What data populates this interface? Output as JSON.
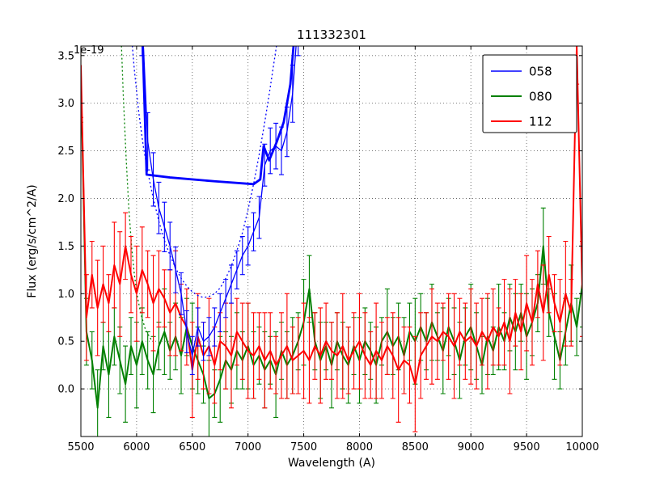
{
  "chart": {
    "title": "111332301",
    "xlabel": "Wavelength (A)",
    "ylabel": "Flux (erg/s/cm^2/A)",
    "offset_factor": "1e-19"
  },
  "legend": {
    "position": "upper right",
    "entries": [
      {
        "label": "058",
        "color": "#0000ff",
        "sample_width": 1.5
      },
      {
        "label": "080",
        "color": "#008000",
        "sample_width": 2
      },
      {
        "label": "112",
        "color": "#ff0000",
        "sample_width": 2
      }
    ]
  },
  "chart_data": {
    "type": "line",
    "title": "111332301",
    "xlabel": "Wavelength (A)",
    "ylabel": "Flux (erg/s/cm^2/A)",
    "y_offset_factor": "1e-19",
    "grid": true,
    "legend_position": "upper right",
    "xlim": [
      5500,
      10000
    ],
    "ylim": [
      -0.5,
      3.6
    ],
    "xticks": [
      5500,
      6000,
      6500,
      7000,
      7500,
      8000,
      8500,
      9000,
      9500,
      10000
    ],
    "xtick_labels": [
      "5500",
      "6000",
      "6500",
      "7000",
      "7500",
      "8000",
      "8500",
      "9000",
      "9500",
      "10000"
    ],
    "yticks": [
      0.0,
      0.5,
      1.0,
      1.5,
      2.0,
      2.5,
      3.0,
      3.5
    ],
    "ytick_labels": [
      "0.0",
      "0.5",
      "1.0",
      "1.5",
      "2.0",
      "2.5",
      "3.0",
      "3.5"
    ],
    "x_grid": [
      5500,
      5550,
      5600,
      5650,
      5700,
      5750,
      5800,
      5850,
      5900,
      5950,
      6000,
      6050,
      6100,
      6150,
      6200,
      6250,
      6300,
      6350,
      6400,
      6450,
      6500,
      6550,
      6600,
      6650,
      6700,
      6750,
      6800,
      6850,
      6900,
      6950,
      7000,
      7050,
      7100,
      7150,
      7200,
      7250,
      7300,
      7350,
      7400,
      7450,
      7500,
      7550,
      7600,
      7650,
      7700,
      7750,
      7800,
      7850,
      7900,
      7950,
      8000,
      8050,
      8100,
      8150,
      8200,
      8250,
      8300,
      8350,
      8400,
      8450,
      8500,
      8550,
      8600,
      8650,
      8700,
      8750,
      8800,
      8850,
      8900,
      8950,
      9000,
      9050,
      9100,
      9150,
      9200,
      9250,
      9300,
      9350,
      9400,
      9450,
      9500,
      9550,
      9600,
      9650,
      9700,
      9750,
      9800,
      9850,
      9900,
      9950,
      10000
    ],
    "series": [
      {
        "name": "080-model-dotted",
        "color": "#008000",
        "dash": "dotted",
        "width": 1.3,
        "x": [
          5855,
          5880,
          5905,
          5930,
          5955,
          5980,
          6010,
          6040,
          6080,
          6130
        ],
        "y": [
          3.9,
          3.1,
          2.45,
          1.9,
          1.5,
          1.2,
          0.95,
          0.78,
          0.62,
          0.52
        ]
      },
      {
        "name": "080",
        "color": "#008000",
        "dash": "solid",
        "width": 2,
        "x_ref": "x_grid",
        "y": [
          3.3,
          0.6,
          0.3,
          -0.2,
          0.45,
          0.15,
          0.55,
          0.3,
          0.05,
          0.45,
          0.25,
          0.5,
          0.3,
          0.15,
          0.45,
          0.6,
          0.4,
          0.55,
          0.35,
          0.65,
          0.45,
          0.3,
          0.15,
          -0.1,
          -0.05,
          0.1,
          0.3,
          0.2,
          0.4,
          0.3,
          0.45,
          0.25,
          0.35,
          0.2,
          0.3,
          0.15,
          0.4,
          0.25,
          0.35,
          0.5,
          0.7,
          1.05,
          0.5,
          0.3,
          0.45,
          0.25,
          0.5,
          0.35,
          0.25,
          0.45,
          0.3,
          0.5,
          0.4,
          0.25,
          0.5,
          0.6,
          0.45,
          0.55,
          0.35,
          0.6,
          0.5,
          0.65,
          0.5,
          0.7,
          0.55,
          0.4,
          0.65,
          0.5,
          0.3,
          0.55,
          0.65,
          0.45,
          0.25,
          0.55,
          0.4,
          0.65,
          0.5,
          0.75,
          0.6,
          0.8,
          0.55,
          0.7,
          0.9,
          1.5,
          0.8,
          0.55,
          0.3,
          0.6,
          0.9,
          0.65,
          1.1
        ],
        "err": [
          0.5,
          0.35,
          0.3,
          0.4,
          0.25,
          0.45,
          0.3,
          0.35,
          0.4,
          0.3,
          0.45,
          0.35,
          0.3,
          0.4,
          0.25,
          0.45,
          0.3,
          0.35,
          0.4,
          0.3,
          0.45,
          0.35,
          0.3,
          0.4,
          0.25,
          0.45,
          0.3,
          0.35,
          0.4,
          0.3,
          0.45,
          0.35,
          0.3,
          0.4,
          0.25,
          0.45,
          0.3,
          0.35,
          0.4,
          0.3,
          0.45,
          0.35,
          0.3,
          0.4,
          0.25,
          0.45,
          0.3,
          0.35,
          0.4,
          0.3,
          0.45,
          0.35,
          0.3,
          0.4,
          0.25,
          0.45,
          0.3,
          0.35,
          0.4,
          0.3,
          0.45,
          0.35,
          0.3,
          0.4,
          0.25,
          0.45,
          0.3,
          0.35,
          0.4,
          0.3,
          0.45,
          0.35,
          0.3,
          0.4,
          0.25,
          0.45,
          0.3,
          0.35,
          0.4,
          0.3,
          0.45,
          0.35,
          0.3,
          0.4,
          0.25,
          0.45,
          0.3,
          0.35,
          0.4,
          0.3,
          0.45
        ]
      },
      {
        "name": "112",
        "color": "#ff0000",
        "dash": "solid",
        "width": 2,
        "x_ref": "x_grid",
        "y": [
          3.4,
          0.75,
          1.2,
          0.85,
          1.1,
          0.9,
          1.3,
          1.1,
          1.5,
          1.2,
          1.0,
          1.25,
          1.1,
          0.9,
          1.05,
          0.95,
          0.8,
          0.9,
          0.75,
          0.65,
          0.2,
          0.55,
          0.35,
          0.45,
          0.25,
          0.5,
          0.45,
          0.35,
          0.6,
          0.5,
          0.4,
          0.35,
          0.45,
          0.3,
          0.4,
          0.25,
          0.35,
          0.45,
          0.3,
          0.35,
          0.4,
          0.3,
          0.45,
          0.35,
          0.5,
          0.4,
          0.35,
          0.45,
          0.3,
          0.4,
          0.5,
          0.35,
          0.25,
          0.4,
          0.3,
          0.45,
          0.35,
          0.2,
          0.3,
          0.25,
          0.05,
          0.35,
          0.45,
          0.55,
          0.5,
          0.6,
          0.55,
          0.45,
          0.6,
          0.5,
          0.55,
          0.45,
          0.6,
          0.5,
          0.65,
          0.55,
          0.7,
          0.5,
          0.8,
          0.6,
          0.9,
          0.7,
          1.1,
          0.8,
          1.2,
          0.9,
          0.7,
          1.0,
          0.8,
          3.6,
          1.05
        ],
        "err": [
          0.55,
          0.45,
          0.35,
          0.5,
          0.4,
          0.3,
          0.45,
          0.55,
          0.35,
          0.4,
          0.5,
          0.45,
          0.35,
          0.5,
          0.4,
          0.3,
          0.45,
          0.55,
          0.35,
          0.4,
          0.5,
          0.45,
          0.35,
          0.5,
          0.4,
          0.3,
          0.45,
          0.55,
          0.35,
          0.4,
          0.5,
          0.45,
          0.35,
          0.5,
          0.4,
          0.3,
          0.45,
          0.55,
          0.35,
          0.4,
          0.5,
          0.45,
          0.35,
          0.5,
          0.4,
          0.3,
          0.45,
          0.55,
          0.35,
          0.4,
          0.5,
          0.45,
          0.35,
          0.5,
          0.4,
          0.3,
          0.45,
          0.55,
          0.35,
          0.4,
          0.5,
          0.45,
          0.35,
          0.5,
          0.4,
          0.3,
          0.45,
          0.55,
          0.35,
          0.4,
          0.5,
          0.45,
          0.35,
          0.5,
          0.4,
          0.3,
          0.45,
          0.55,
          0.35,
          0.4,
          0.5,
          0.45,
          0.35,
          0.5,
          0.4,
          0.3,
          0.45,
          0.55,
          0.35,
          0.4,
          0.5
        ]
      },
      {
        "name": "058-model-dotted",
        "color": "#0000ff",
        "dash": "dotted",
        "width": 1.3,
        "x": [
          5940,
          5980,
          6020,
          6060,
          6100,
          6150,
          6200,
          6250,
          6300,
          6350,
          6400,
          6450,
          6500,
          6550,
          6600,
          6650,
          6700,
          6750,
          6800,
          6850,
          6900,
          6950,
          7000,
          7050,
          7100,
          7150,
          7200,
          7250,
          7290
        ],
        "y": [
          3.9,
          3.35,
          2.9,
          2.55,
          2.28,
          2.0,
          1.76,
          1.56,
          1.4,
          1.27,
          1.16,
          1.08,
          1.02,
          0.98,
          0.96,
          0.97,
          1.0,
          1.06,
          1.16,
          1.29,
          1.45,
          1.64,
          1.88,
          2.15,
          2.46,
          2.8,
          3.17,
          3.56,
          3.9
        ]
      },
      {
        "name": "058",
        "color": "#0000ff",
        "dash": "solid",
        "width": 1.3,
        "x": [
          6050,
          6100,
          6150,
          6200,
          6250,
          6300,
          6350,
          6400,
          6450,
          6500,
          6550,
          6600,
          6650,
          6700,
          6750,
          6800,
          6850,
          6900,
          6950,
          7000,
          7050,
          7100,
          7150,
          7200,
          7250,
          7300,
          7350,
          7400,
          7450
        ],
        "y": [
          3.9,
          2.6,
          2.2,
          1.9,
          1.7,
          1.5,
          1.25,
          1.0,
          0.6,
          0.35,
          0.65,
          0.5,
          0.55,
          0.65,
          0.8,
          0.95,
          1.1,
          1.25,
          1.4,
          1.5,
          1.65,
          1.8,
          2.35,
          2.5,
          2.55,
          2.5,
          2.7,
          3.1,
          3.9
        ],
        "err": [
          0.4,
          0.3,
          0.28,
          0.27,
          0.26,
          0.25,
          0.24,
          0.22,
          0.22,
          0.2,
          0.2,
          0.2,
          0.2,
          0.2,
          0.2,
          0.2,
          0.2,
          0.2,
          0.2,
          0.2,
          0.2,
          0.22,
          0.22,
          0.24,
          0.24,
          0.25,
          0.26,
          0.3,
          0.4
        ]
      },
      {
        "name": "058-smoothed-thick",
        "color": "#0000ff",
        "dash": "solid",
        "width": 2.8,
        "x": [
          6040,
          6090,
          6300,
          6700,
          7050,
          7110,
          7140,
          7190,
          7260,
          7320,
          7380,
          7430
        ],
        "y": [
          4.2,
          2.25,
          2.22,
          2.18,
          2.15,
          2.2,
          2.55,
          2.4,
          2.6,
          2.8,
          3.2,
          3.9
        ]
      }
    ]
  }
}
